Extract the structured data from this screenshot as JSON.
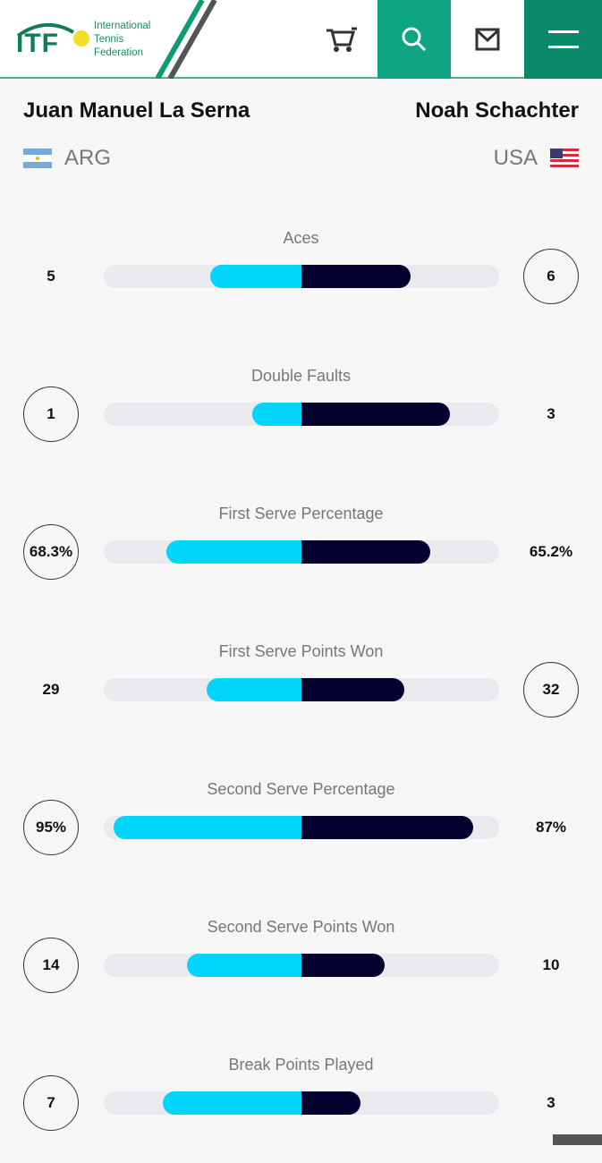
{
  "header": {
    "logo_abbr": "ITF",
    "logo_lines": [
      "International",
      "Tennis",
      "Federation"
    ],
    "icons": [
      "cart-icon",
      "search-icon",
      "mail-icon",
      "menu-icon"
    ]
  },
  "players": {
    "left": {
      "name": "Juan Manuel La Serna",
      "country": "ARG"
    },
    "right": {
      "name": "Noah Schachter",
      "country": "USA"
    }
  },
  "colors": {
    "left_bar": "#00d4f8",
    "right_bar": "#04012e",
    "brand": "#0fa582"
  },
  "stats": [
    {
      "label": "Aces",
      "left": "5",
      "right": "6",
      "left_fraction": 0.46,
      "right_fraction": 0.55,
      "winner": "right"
    },
    {
      "label": "Double Faults",
      "left": "1",
      "right": "3",
      "left_fraction": 0.25,
      "right_fraction": 0.75,
      "winner": "left"
    },
    {
      "label": "First Serve Percentage",
      "left": "68.3%",
      "right": "65.2%",
      "left_fraction": 0.683,
      "right_fraction": 0.652,
      "winner": "left"
    },
    {
      "label": "First Serve Points Won",
      "left": "29",
      "right": "32",
      "left_fraction": 0.48,
      "right_fraction": 0.52,
      "winner": "right"
    },
    {
      "label": "Second Serve Percentage",
      "left": "95%",
      "right": "87%",
      "left_fraction": 0.95,
      "right_fraction": 0.87,
      "winner": "left"
    },
    {
      "label": "Second Serve Points Won",
      "left": "14",
      "right": "10",
      "left_fraction": 0.58,
      "right_fraction": 0.42,
      "winner": "left"
    },
    {
      "label": "Break Points Played",
      "left": "7",
      "right": "3",
      "left_fraction": 0.7,
      "right_fraction": 0.3,
      "winner": "left"
    }
  ]
}
